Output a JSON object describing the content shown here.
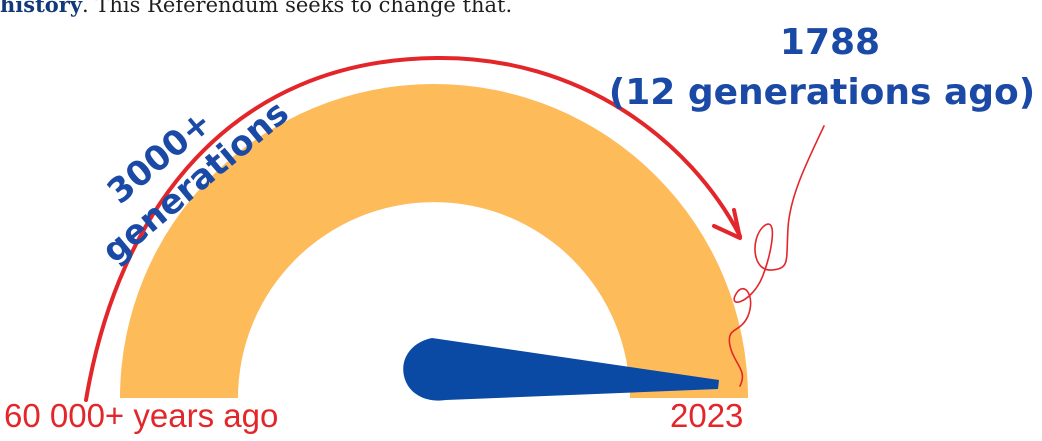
{
  "intro": {
    "bold_text": "history",
    "rest_text": ". This Referendum seeks to change that."
  },
  "gauge": {
    "start_label": "60 000+ years ago",
    "end_label": "2023",
    "span_label_line1": "3000+",
    "span_label_line2": "generations",
    "callout_line1": "1788",
    "callout_line2": "(12 generations ago)",
    "colors": {
      "arc": "#fdbb5a",
      "needle": "#0a4aa5",
      "arrow": "#e3262a",
      "handwriting": "#1b4aa6"
    }
  }
}
